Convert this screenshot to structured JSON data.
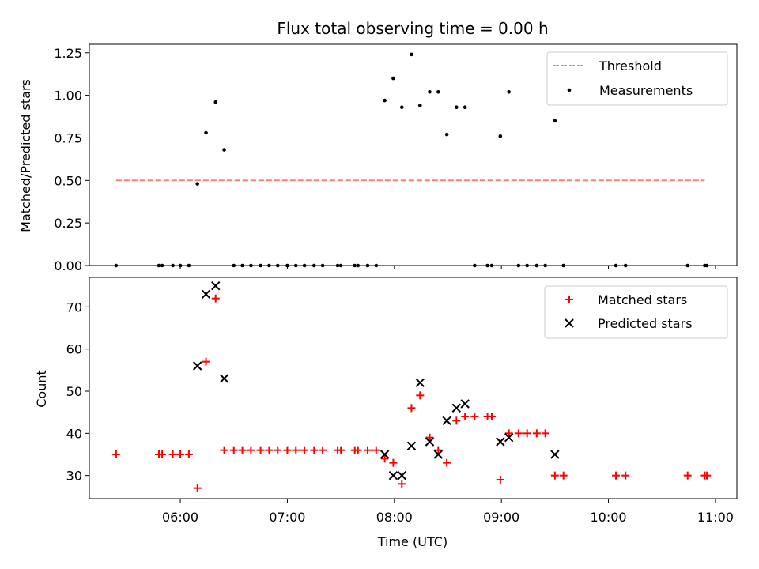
{
  "chart_data": [
    {
      "type": "scatter",
      "title": "Flux total observing time = 0.00 h",
      "xlabel": "",
      "ylabel": "Matched/Predicted stars",
      "xlim": [
        5.15,
        11.2
      ],
      "ylim": [
        0,
        1.3
      ],
      "yticks": [
        0,
        0.25,
        0.5,
        0.75,
        1.0,
        1.25
      ],
      "yticklabels": [
        "0.00",
        "0.25",
        "0.50",
        "0.75",
        "1.00",
        "1.25"
      ],
      "xticks": [
        6,
        7,
        8,
        9,
        10,
        11
      ],
      "legend_position": "top-right",
      "colors": {
        "threshold": "#ff7f7f",
        "measurements": "#000000"
      },
      "threshold": {
        "name": "Threshold",
        "x": [
          5.4,
          10.9
        ],
        "y": 0.5
      },
      "measurements": {
        "name": "Measurements",
        "x": [
          5.4,
          5.8,
          5.83,
          5.93,
          6.0,
          6.08,
          6.16,
          6.24,
          6.33,
          6.41,
          6.5,
          6.58,
          6.66,
          6.75,
          6.83,
          6.91,
          7.0,
          7.08,
          7.16,
          7.25,
          7.33,
          7.47,
          7.5,
          7.63,
          7.66,
          7.75,
          7.83,
          7.91,
          7.99,
          8.07,
          8.16,
          8.24,
          8.33,
          8.41,
          8.49,
          8.58,
          8.66,
          8.75,
          8.87,
          8.91,
          8.99,
          9.07,
          9.16,
          9.24,
          9.33,
          9.41,
          9.5,
          9.58,
          10.07,
          10.16,
          10.74,
          10.9,
          10.92
        ],
        "y": [
          0,
          0,
          0,
          0,
          0,
          0,
          0.48,
          0.78,
          0.96,
          0.68,
          0,
          0,
          0,
          0,
          0,
          0,
          0,
          0,
          0,
          0,
          0,
          0,
          0,
          0,
          0,
          0,
          0,
          0.97,
          1.1,
          0.93,
          1.24,
          0.94,
          1.02,
          1.02,
          0.77,
          0.93,
          0.93,
          0,
          0,
          0,
          0.76,
          1.02,
          0,
          0,
          0,
          0,
          0.85,
          0,
          0,
          0,
          0,
          0,
          0
        ]
      }
    },
    {
      "type": "scatter",
      "title": "",
      "xlabel": "Time (UTC)",
      "ylabel": "Count",
      "xlim": [
        5.15,
        11.2
      ],
      "ylim": [
        24.5,
        77
      ],
      "yticks": [
        30,
        40,
        50,
        60,
        70
      ],
      "yticklabels": [
        "30",
        "40",
        "50",
        "60",
        "70"
      ],
      "xticks": [
        6,
        7,
        8,
        9,
        10,
        11
      ],
      "xticklabels": [
        "06:00",
        "07:00",
        "08:00",
        "09:00",
        "10:00",
        "11:00"
      ],
      "legend_position": "top-right",
      "colors": {
        "matched": "#ff0000",
        "predicted": "#000000"
      },
      "matched": {
        "name": "Matched stars",
        "x": [
          5.4,
          5.8,
          5.83,
          5.93,
          6.0,
          6.08,
          6.16,
          6.24,
          6.33,
          6.41,
          6.5,
          6.58,
          6.66,
          6.75,
          6.83,
          6.91,
          7.0,
          7.08,
          7.16,
          7.25,
          7.33,
          7.47,
          7.5,
          7.63,
          7.66,
          7.75,
          7.83,
          7.91,
          7.99,
          8.07,
          8.16,
          8.24,
          8.33,
          8.41,
          8.49,
          8.58,
          8.66,
          8.75,
          8.87,
          8.91,
          8.99,
          9.07,
          9.16,
          9.24,
          9.33,
          9.41,
          9.5,
          9.58,
          10.07,
          10.16,
          10.74,
          10.9,
          10.92
        ],
        "y": [
          35,
          35,
          35,
          35,
          35,
          35,
          27,
          57,
          72,
          36,
          36,
          36,
          36,
          36,
          36,
          36,
          36,
          36,
          36,
          36,
          36,
          36,
          36,
          36,
          36,
          36,
          36,
          34,
          33,
          28,
          46,
          49,
          39,
          36,
          33,
          43,
          44,
          44,
          44,
          44,
          29,
          40,
          40,
          40,
          40,
          40,
          30,
          30,
          30,
          30,
          30,
          30,
          30
        ]
      },
      "predicted": {
        "name": "Predicted stars",
        "x": [
          6.16,
          6.24,
          6.33,
          6.41,
          7.91,
          7.99,
          8.07,
          8.16,
          8.24,
          8.33,
          8.41,
          8.49,
          8.58,
          8.66,
          8.99,
          9.07,
          9.5
        ],
        "y": [
          56,
          73,
          75,
          53,
          35,
          30,
          30,
          37,
          52,
          38,
          35,
          43,
          46,
          47,
          38,
          39,
          35
        ]
      }
    }
  ]
}
